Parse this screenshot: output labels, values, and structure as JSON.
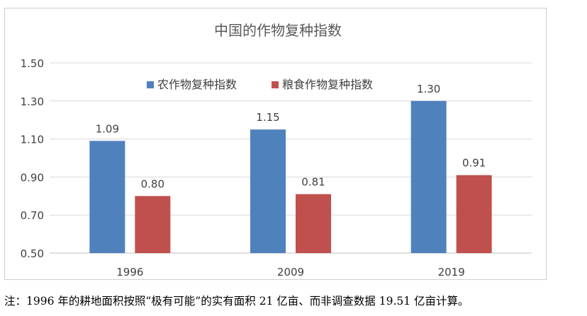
{
  "chart_data": {
    "type": "bar",
    "title": "中国的作物复种指数",
    "categories": [
      "1996",
      "2009",
      "2019"
    ],
    "series": [
      {
        "name": "农作物复种指数",
        "values": [
          1.09,
          1.15,
          1.3
        ],
        "labels": [
          "1.09",
          "1.15",
          "1.30"
        ],
        "color": "#4f81bd"
      },
      {
        "name": "粮食作物复种指数",
        "values": [
          0.8,
          0.81,
          0.91
        ],
        "labels": [
          "0.80",
          "0.81",
          "0.91"
        ],
        "color": "#c0504d"
      }
    ],
    "ylim": [
      0.5,
      1.5
    ],
    "yticks": [
      "0.50",
      "0.70",
      "0.90",
      "1.10",
      "1.30",
      "1.50"
    ],
    "grid": true,
    "legend_position": "top-center"
  },
  "footnote": "注：1996 年的耕地面积按照“极有可能”的实有面积 21 亿亩、而非调查数据 19.51 亿亩计算。"
}
